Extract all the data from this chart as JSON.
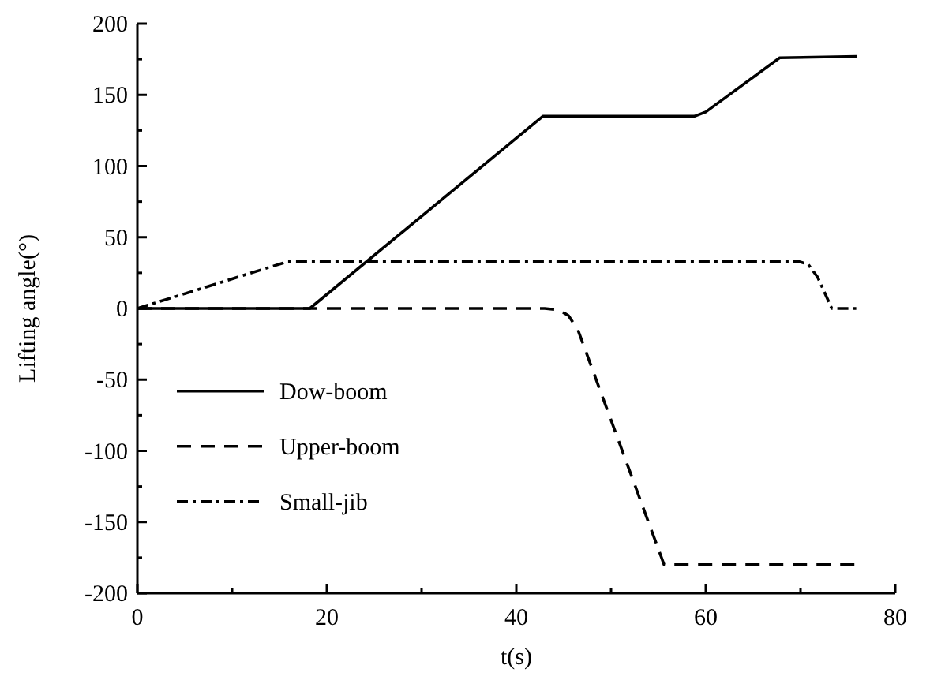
{
  "chart_data": {
    "type": "line",
    "xlabel": "t(s)",
    "ylabel": "Lifting angle(°)",
    "xlim": [
      0,
      80
    ],
    "ylim": [
      -200,
      200
    ],
    "xticks": [
      0,
      {
        "value": 10,
        "label": null
      },
      20,
      {
        "value": 30,
        "label": null
      },
      40,
      {
        "value": 50,
        "label": null
      },
      60,
      {
        "value": 70,
        "label": null
      },
      80
    ],
    "yticks": [
      -200,
      {
        "value": -175,
        "label": null
      },
      -150,
      {
        "value": -125,
        "label": null
      },
      -100,
      {
        "value": -75,
        "label": null
      },
      -50,
      {
        "value": -25,
        "label": null
      },
      0,
      {
        "value": 25,
        "label": null
      },
      50,
      {
        "value": 75,
        "label": null
      },
      100,
      {
        "value": 125,
        "label": null
      },
      150,
      {
        "value": 175,
        "label": null
      },
      200
    ],
    "grid": false,
    "legend": "bottom left",
    "series": [
      {
        "name": "Dow-boom",
        "color": "#000000",
        "line_style": "solid",
        "x": [
          0,
          18.2,
          42.8,
          58.8,
          60,
          67.8,
          76
        ],
        "values": [
          0,
          0,
          135,
          135,
          138,
          176,
          177
        ]
      },
      {
        "name": "Upper-boom",
        "color": "#000000",
        "line_style": "dashed",
        "x": [
          0,
          18,
          43,
          44.5,
          45.5,
          46.5,
          55.6,
          76
        ],
        "values": [
          0,
          0,
          0,
          -1,
          -5,
          -15,
          -180,
          -180
        ]
      },
      {
        "name": "Small-jib",
        "color": "#000000",
        "line_style": "dashdot",
        "x": [
          0,
          15.9,
          69.8,
          70.8,
          71.8,
          73.3,
          76
        ],
        "values": [
          0,
          33,
          33,
          31,
          22,
          0,
          0
        ]
      }
    ]
  }
}
